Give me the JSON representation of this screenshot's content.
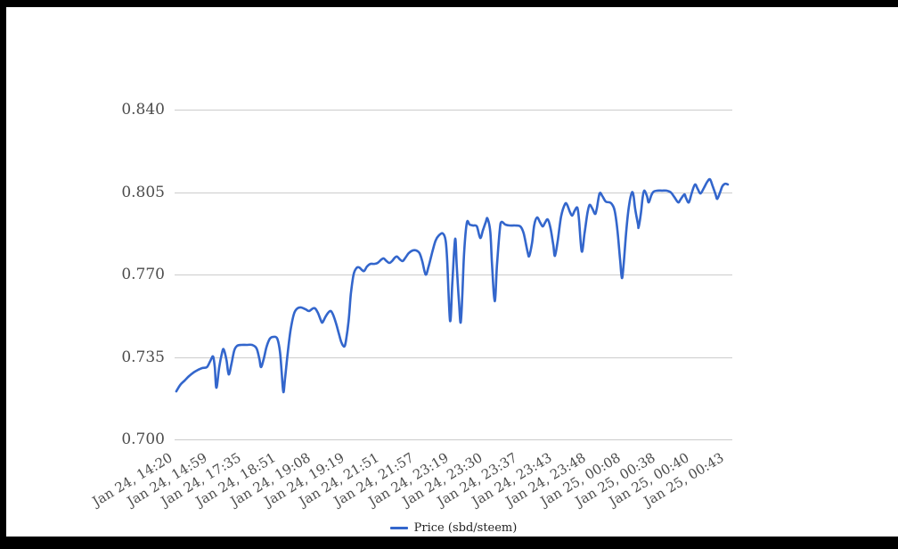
{
  "page": {
    "background": "#ffffff",
    "frame_color": "#000000"
  },
  "colors": {
    "series_blue": "#3366cc",
    "gridline": "#cccccc",
    "axis_text": "#4c4c4c",
    "legend_text": "#222222"
  },
  "legend": {
    "label": "Price (sbd/steem)"
  },
  "chart_data": {
    "type": "line",
    "title": "",
    "xlabel": "",
    "ylabel": "",
    "grid": true,
    "legend_position": "bottom",
    "y_range": [
      0.7,
      0.84
    ],
    "y_ticks": [
      0.7,
      0.735,
      0.77,
      0.805,
      0.84
    ],
    "x_tick_labels": [
      "Jan 24, 14:20",
      "Jan 24, 14:59",
      "Jan 24, 17:35",
      "Jan 24, 18:51",
      "Jan 24, 19:08",
      "Jan 24, 19:19",
      "Jan 24, 21:51",
      "Jan 24, 21:57",
      "Jan 24, 23:19",
      "Jan 24, 23:30",
      "Jan 24, 23:37",
      "Jan 24, 23:43",
      "Jan 24, 23:48",
      "Jan 25, 00:08",
      "Jan 25, 00:38",
      "Jan 25, 00:40",
      "Jan 25, 00:43"
    ],
    "series": [
      {
        "name": "Price (sbd/steem)",
        "color": "#3366cc",
        "points": [
          [
            0.003,
            0.7204
          ],
          [
            0.01,
            0.7231
          ],
          [
            0.018,
            0.725
          ],
          [
            0.026,
            0.7269
          ],
          [
            0.034,
            0.7284
          ],
          [
            0.042,
            0.7295
          ],
          [
            0.05,
            0.7303
          ],
          [
            0.058,
            0.7307
          ],
          [
            0.064,
            0.7333
          ],
          [
            0.069,
            0.7352
          ],
          [
            0.072,
            0.7307
          ],
          [
            0.075,
            0.7219
          ],
          [
            0.08,
            0.7307
          ],
          [
            0.085,
            0.7367
          ],
          [
            0.088,
            0.7382
          ],
          [
            0.093,
            0.7337
          ],
          [
            0.097,
            0.7276
          ],
          [
            0.102,
            0.7322
          ],
          [
            0.107,
            0.7378
          ],
          [
            0.112,
            0.7397
          ],
          [
            0.12,
            0.7401
          ],
          [
            0.129,
            0.7401
          ],
          [
            0.139,
            0.7401
          ],
          [
            0.147,
            0.7386
          ],
          [
            0.152,
            0.7341
          ],
          [
            0.155,
            0.7307
          ],
          [
            0.16,
            0.7344
          ],
          [
            0.165,
            0.7394
          ],
          [
            0.171,
            0.7428
          ],
          [
            0.177,
            0.7435
          ],
          [
            0.184,
            0.7428
          ],
          [
            0.189,
            0.7371
          ],
          [
            0.192,
            0.7284
          ],
          [
            0.195,
            0.7201
          ],
          [
            0.198,
            0.7257
          ],
          [
            0.203,
            0.7371
          ],
          [
            0.208,
            0.7465
          ],
          [
            0.214,
            0.7533
          ],
          [
            0.22,
            0.7556
          ],
          [
            0.227,
            0.756
          ],
          [
            0.235,
            0.7552
          ],
          [
            0.241,
            0.7545
          ],
          [
            0.248,
            0.7556
          ],
          [
            0.252,
            0.7556
          ],
          [
            0.257,
            0.7537
          ],
          [
            0.262,
            0.7507
          ],
          [
            0.265,
            0.7496
          ],
          [
            0.27,
            0.7518
          ],
          [
            0.275,
            0.7537
          ],
          [
            0.28,
            0.7545
          ],
          [
            0.284,
            0.753
          ],
          [
            0.289,
            0.7496
          ],
          [
            0.294,
            0.7454
          ],
          [
            0.299,
            0.7412
          ],
          [
            0.304,
            0.7394
          ],
          [
            0.307,
            0.7416
          ],
          [
            0.312,
            0.7503
          ],
          [
            0.316,
            0.7617
          ],
          [
            0.321,
            0.77
          ],
          [
            0.326,
            0.7727
          ],
          [
            0.331,
            0.773
          ],
          [
            0.336,
            0.7719
          ],
          [
            0.34,
            0.7715
          ],
          [
            0.345,
            0.7734
          ],
          [
            0.351,
            0.7745
          ],
          [
            0.358,
            0.7745
          ],
          [
            0.364,
            0.7749
          ],
          [
            0.371,
            0.7764
          ],
          [
            0.375,
            0.7768
          ],
          [
            0.38,
            0.7757
          ],
          [
            0.385,
            0.7749
          ],
          [
            0.39,
            0.7757
          ],
          [
            0.395,
            0.7772
          ],
          [
            0.399,
            0.7776
          ],
          [
            0.404,
            0.7764
          ],
          [
            0.409,
            0.7757
          ],
          [
            0.414,
            0.7772
          ],
          [
            0.42,
            0.7791
          ],
          [
            0.427,
            0.7802
          ],
          [
            0.433,
            0.7802
          ],
          [
            0.439,
            0.7791
          ],
          [
            0.444,
            0.7757
          ],
          [
            0.45,
            0.77
          ],
          [
            0.455,
            0.773
          ],
          [
            0.462,
            0.7795
          ],
          [
            0.468,
            0.7844
          ],
          [
            0.474,
            0.7866
          ],
          [
            0.481,
            0.7874
          ],
          [
            0.486,
            0.7844
          ],
          [
            0.489,
            0.7749
          ],
          [
            0.494,
            0.7503
          ],
          [
            0.498,
            0.7662
          ],
          [
            0.503,
            0.7851
          ],
          [
            0.506,
            0.773
          ],
          [
            0.51,
            0.7579
          ],
          [
            0.513,
            0.7496
          ],
          [
            0.516,
            0.7617
          ],
          [
            0.519,
            0.7787
          ],
          [
            0.524,
            0.7919
          ],
          [
            0.529,
            0.7912
          ],
          [
            0.535,
            0.7908
          ],
          [
            0.542,
            0.7904
          ],
          [
            0.548,
            0.7855
          ],
          [
            0.553,
            0.7889
          ],
          [
            0.558,
            0.7923
          ],
          [
            0.561,
            0.7938
          ],
          [
            0.566,
            0.7882
          ],
          [
            0.569,
            0.7749
          ],
          [
            0.574,
            0.7587
          ],
          [
            0.578,
            0.7738
          ],
          [
            0.583,
            0.7889
          ],
          [
            0.586,
            0.7923
          ],
          [
            0.593,
            0.7912
          ],
          [
            0.601,
            0.7908
          ],
          [
            0.61,
            0.7908
          ],
          [
            0.62,
            0.7904
          ],
          [
            0.626,
            0.7874
          ],
          [
            0.633,
            0.7795
          ],
          [
            0.636,
            0.7779
          ],
          [
            0.641,
            0.7836
          ],
          [
            0.645,
            0.7912
          ],
          [
            0.65,
            0.7942
          ],
          [
            0.655,
            0.7923
          ],
          [
            0.66,
            0.7904
          ],
          [
            0.664,
            0.7919
          ],
          [
            0.669,
            0.7934
          ],
          [
            0.674,
            0.7897
          ],
          [
            0.679,
            0.7825
          ],
          [
            0.682,
            0.7779
          ],
          [
            0.687,
            0.7844
          ],
          [
            0.693,
            0.7946
          ],
          [
            0.7,
            0.7999
          ],
          [
            0.704,
            0.7995
          ],
          [
            0.709,
            0.7965
          ],
          [
            0.713,
            0.795
          ],
          [
            0.717,
            0.7969
          ],
          [
            0.722,
            0.7984
          ],
          [
            0.725,
            0.7938
          ],
          [
            0.73,
            0.7798
          ],
          [
            0.735,
            0.7874
          ],
          [
            0.74,
            0.7957
          ],
          [
            0.744,
            0.7995
          ],
          [
            0.749,
            0.798
          ],
          [
            0.754,
            0.7957
          ],
          [
            0.757,
            0.798
          ],
          [
            0.762,
            0.8044
          ],
          [
            0.767,
            0.8033
          ],
          [
            0.773,
            0.801
          ],
          [
            0.78,
            0.8006
          ],
          [
            0.784,
            0.7999
          ],
          [
            0.789,
            0.7972
          ],
          [
            0.794,
            0.7889
          ],
          [
            0.799,
            0.7757
          ],
          [
            0.802,
            0.7685
          ],
          [
            0.805,
            0.7738
          ],
          [
            0.81,
            0.7889
          ],
          [
            0.815,
            0.7995
          ],
          [
            0.82,
            0.8048
          ],
          [
            0.823,
            0.8033
          ],
          [
            0.826,
            0.7976
          ],
          [
            0.831,
            0.7912
          ],
          [
            0.832,
            0.7901
          ],
          [
            0.836,
            0.7957
          ],
          [
            0.839,
            0.8022
          ],
          [
            0.842,
            0.8056
          ],
          [
            0.847,
            0.8033
          ],
          [
            0.85,
            0.8006
          ],
          [
            0.855,
            0.8037
          ],
          [
            0.859,
            0.8052
          ],
          [
            0.866,
            0.8056
          ],
          [
            0.874,
            0.8056
          ],
          [
            0.882,
            0.8056
          ],
          [
            0.89,
            0.8048
          ],
          [
            0.896,
            0.8029
          ],
          [
            0.903,
            0.8006
          ],
          [
            0.907,
            0.8018
          ],
          [
            0.914,
            0.804
          ],
          [
            0.917,
            0.8025
          ],
          [
            0.922,
            0.8006
          ],
          [
            0.927,
            0.8044
          ],
          [
            0.933,
            0.8082
          ],
          [
            0.938,
            0.8063
          ],
          [
            0.943,
            0.8044
          ],
          [
            0.949,
            0.8067
          ],
          [
            0.955,
            0.8093
          ],
          [
            0.96,
            0.8104
          ],
          [
            0.965,
            0.8074
          ],
          [
            0.97,
            0.804
          ],
          [
            0.973,
            0.8021
          ],
          [
            0.978,
            0.8048
          ],
          [
            0.982,
            0.8074
          ],
          [
            0.987,
            0.8085
          ],
          [
            0.992,
            0.8082
          ]
        ]
      }
    ]
  }
}
